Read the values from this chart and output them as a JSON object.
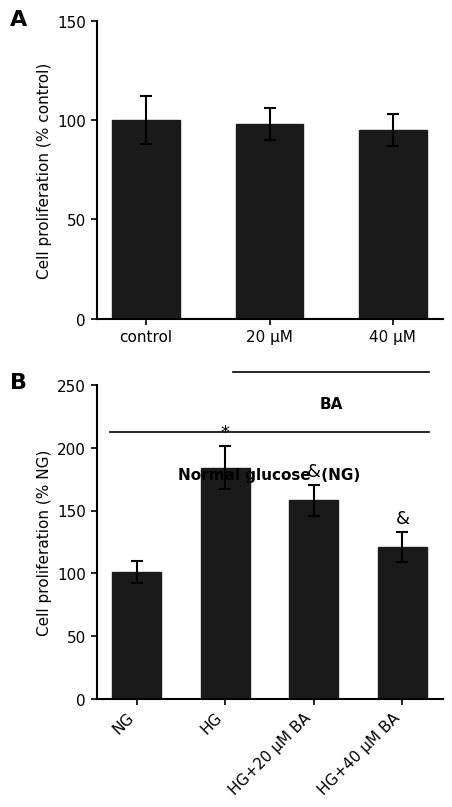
{
  "panel_A": {
    "categories": [
      "control",
      "20 μM",
      "40 μM"
    ],
    "values": [
      100,
      98,
      95
    ],
    "errors": [
      12,
      8,
      8
    ],
    "ylabel": "Cell proliferation (% control)",
    "ylim": [
      0,
      150
    ],
    "yticks": [
      0,
      50,
      100,
      150
    ],
    "bar_color": "#1a1a1a",
    "bar_width": 0.55,
    "label": "A",
    "xlabel_BA": "BA",
    "xlabel_NG": "Normal glucose  (NG)"
  },
  "panel_B": {
    "categories": [
      "NG",
      "HG",
      "HG+20 μM BA",
      "HG+40 μM BA"
    ],
    "values": [
      101,
      184,
      158,
      121
    ],
    "errors": [
      9,
      17,
      12,
      12
    ],
    "ylabel": "Cell proliferation (% NG)",
    "ylim": [
      0,
      250
    ],
    "yticks": [
      0,
      50,
      100,
      150,
      200,
      250
    ],
    "bar_color": "#1a1a1a",
    "bar_width": 0.55,
    "label": "B",
    "annotations": [
      {
        "bar_idx": 1,
        "text": "*",
        "fontsize": 13
      },
      {
        "bar_idx": 2,
        "text": "&",
        "fontsize": 13
      },
      {
        "bar_idx": 3,
        "text": "&",
        "fontsize": 13
      }
    ]
  },
  "figure_bg": "#ffffff",
  "axes_linewidth": 1.5,
  "tick_fontsize": 11,
  "label_fontsize": 11,
  "panel_label_fontsize": 16,
  "error_capsize": 4,
  "error_linewidth": 1.5
}
